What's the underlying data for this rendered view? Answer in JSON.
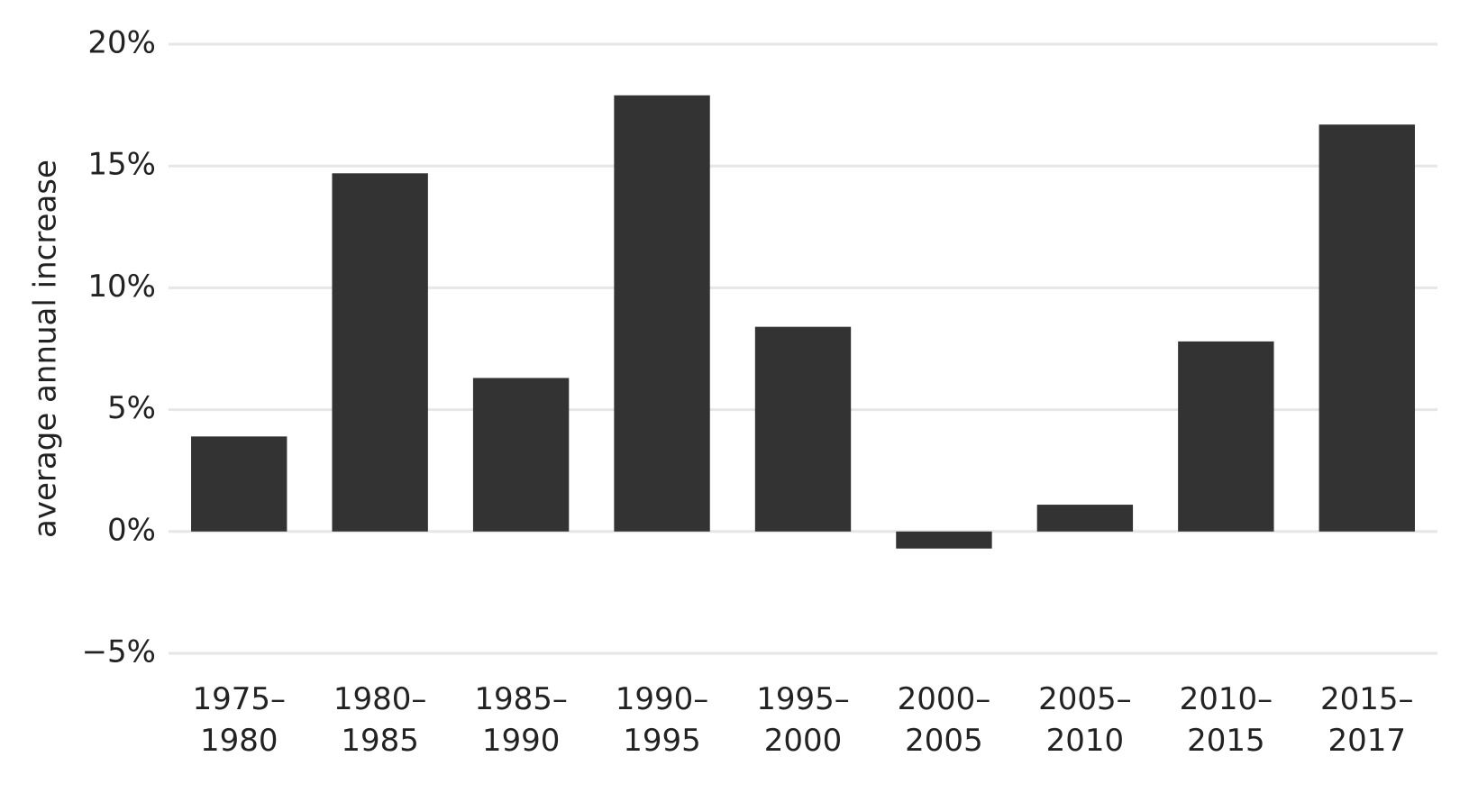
{
  "chart_data": {
    "type": "bar",
    "y_label": "average annual increase",
    "categories": [
      "1975–1980",
      "1980–1985",
      "1985–1990",
      "1990–1995",
      "1995–2000",
      "2000–2005",
      "2005–2010",
      "2010–2015",
      "2015–2017"
    ],
    "values": [
      3.9,
      14.7,
      6.3,
      17.9,
      8.4,
      -0.7,
      1.1,
      7.8,
      16.7
    ],
    "color": "#333333",
    "ylim": [
      -5,
      20
    ],
    "yticks": [
      {
        "value": -5,
        "label": "−5%"
      },
      {
        "value": 0,
        "label": "0%"
      },
      {
        "value": 5,
        "label": "5%"
      },
      {
        "value": 10,
        "label": "10%"
      },
      {
        "value": 15,
        "label": "15%"
      },
      {
        "value": 20,
        "label": "20%"
      }
    ],
    "grid": true
  }
}
